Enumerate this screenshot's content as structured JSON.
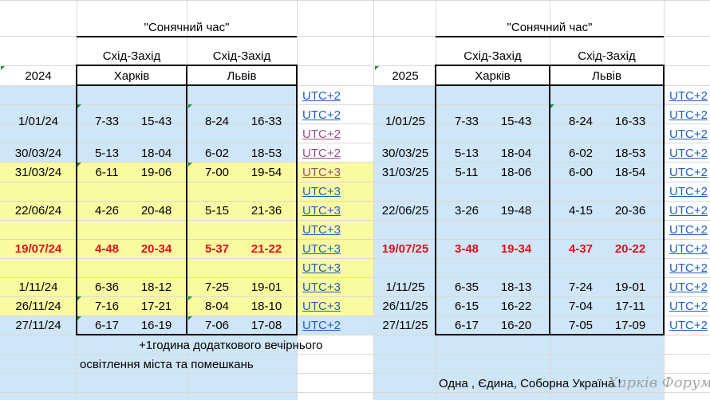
{
  "colors": {
    "light_blue": "#cfe6f7",
    "light_yellow": "#fafaa0",
    "red": "#e0101a",
    "link_blue": "#1f5fbf",
    "link_purple": "#8e4f83"
  },
  "left": {
    "title": "\"Сонячний час\"",
    "year": "2024",
    "col1_head": "Схід-Захід",
    "col1_city": "Харків",
    "col2_head": "Схід-Захід",
    "col2_city": "Львів",
    "rows": [
      {
        "date": "1/01/24",
        "k1": "7-33",
        "k2": "15-43",
        "l1": "8-24",
        "l2": "16-33"
      },
      {
        "date": "30/03/24",
        "k1": "5-13",
        "k2": "18-04",
        "l1": "6-02",
        "l2": "18-53"
      },
      {
        "date": "31/03/24",
        "k1": "6-11",
        "k2": "19-06",
        "l1": "7-00",
        "l2": "19-54"
      },
      {
        "date": "22/06/24",
        "k1": "4-26",
        "k2": "20-48",
        "l1": "5-15",
        "l2": "21-36"
      },
      {
        "date": "19/07/24",
        "k1": "4-48",
        "k2": "20-34",
        "l1": "5-37",
        "l2": "21-22"
      },
      {
        "date": "1/11/24",
        "k1": "6-36",
        "k2": "18-12",
        "l1": "7-25",
        "l2": "19-01"
      },
      {
        "date": "26/11/24",
        "k1": "7-16",
        "k2": "17-21",
        "l1": "8-04",
        "l2": "18-10"
      },
      {
        "date": "27/11/24",
        "k1": "6-17",
        "k2": "16-19",
        "l1": "7-06",
        "l2": "17-08"
      }
    ],
    "utc": [
      "UTC+2",
      "UTC+2",
      "UTC+2",
      "UTC+2",
      "UTC+3",
      "UTC+3",
      "UTC+3",
      "UTC+3",
      "UTC+3",
      "UTC+3",
      "UTC+3",
      "UTC+3",
      "UTC+2"
    ],
    "note_line1": "+1година додаткового вечірнього",
    "note_line2": "освітлення міста та помешкань"
  },
  "right": {
    "title": "\"Сонячний час\"",
    "year": "2025",
    "col1_head": "Схід-Захід",
    "col1_city": "Харків",
    "col2_head": "Схід-Захід",
    "col2_city": "Львів",
    "rows": [
      {
        "date": "1/01/25",
        "k1": "7-33",
        "k2": "15-43",
        "l1": "8-24",
        "l2": "16-33"
      },
      {
        "date": "30/03/25",
        "k1": "5-13",
        "k2": "18-04",
        "l1": "6-02",
        "l2": "18-53"
      },
      {
        "date": "31/03/25",
        "k1": "5-11",
        "k2": "18-06",
        "l1": "6-00",
        "l2": "18-54"
      },
      {
        "date": "22/06/25",
        "k1": "3-26",
        "k2": "19-48",
        "l1": "4-15",
        "l2": "20-36"
      },
      {
        "date": "19/07/25",
        "k1": "3-48",
        "k2": "19-34",
        "l1": "4-37",
        "l2": "20-22"
      },
      {
        "date": "1/11/25",
        "k1": "6-35",
        "k2": "18-13",
        "l1": "7-24",
        "l2": "19-01"
      },
      {
        "date": "26/11/25",
        "k1": "6-15",
        "k2": "16-22",
        "l1": "7-04",
        "l2": "17-11"
      },
      {
        "date": "27/11/25",
        "k1": "6-17",
        "k2": "16-20",
        "l1": "7-05",
        "l2": "17-09"
      }
    ],
    "utc": [
      "UTC+2",
      "UTC+2",
      "UTC+2",
      "UTC+2",
      "UTC+2",
      "UTC+2",
      "UTC+2",
      "UTC+2",
      "UTC+2",
      "UTC+2",
      "UTC+2",
      "UTC+2",
      "UTC+2"
    ],
    "footer": "Одна , Єдина, Соборна Україна !"
  },
  "watermark": "Харків Форум"
}
